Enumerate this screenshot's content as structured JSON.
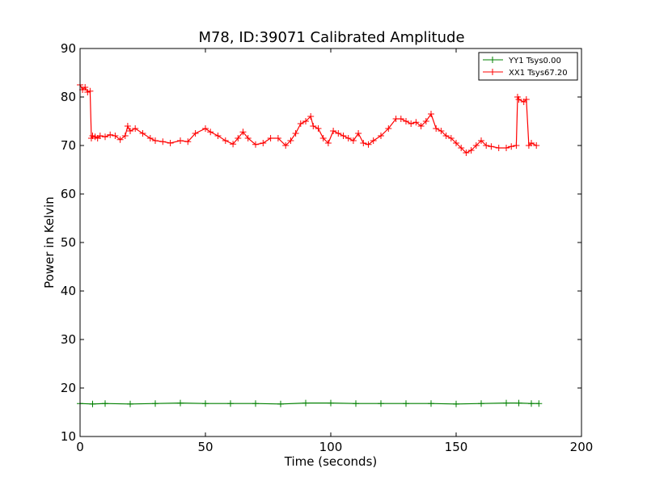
{
  "chart_data": {
    "type": "line",
    "title": "M78, ID:39071 Calibrated Amplitude",
    "xlabel": "Time (seconds)",
    "ylabel": "Power in Kelvin",
    "xlim": [
      0,
      200
    ],
    "ylim": [
      10,
      90
    ],
    "xticks": [
      "0",
      "50",
      "100",
      "150",
      "200"
    ],
    "yticks": [
      "10",
      "20",
      "30",
      "40",
      "50",
      "60",
      "70",
      "80",
      "90"
    ],
    "grid": false,
    "legend_position": "top-right",
    "marker": "plus",
    "series": [
      {
        "name": "YY1 Tsys0.00",
        "color": "#008000",
        "x": [
          0,
          5,
          10,
          20,
          30,
          40,
          50,
          60,
          70,
          80,
          90,
          100,
          110,
          120,
          130,
          140,
          150,
          160,
          170,
          175,
          180,
          183
        ],
        "y": [
          16.8,
          16.7,
          16.8,
          16.7,
          16.8,
          16.9,
          16.8,
          16.8,
          16.8,
          16.7,
          16.9,
          16.9,
          16.8,
          16.8,
          16.8,
          16.8,
          16.7,
          16.8,
          16.9,
          16.9,
          16.8,
          16.8
        ]
      },
      {
        "name": "XX1 Tsys67.20",
        "color": "#ff0000",
        "x": [
          0,
          1,
          2,
          3,
          4,
          4.5,
          5,
          6,
          7,
          8,
          10,
          12,
          14,
          16,
          18,
          19,
          20,
          22,
          25,
          28,
          30,
          33,
          36,
          40,
          43,
          46,
          50,
          52,
          55,
          58,
          61,
          63,
          65,
          67,
          70,
          73,
          76,
          79,
          82,
          84,
          86,
          88,
          90,
          92,
          93,
          95,
          97,
          99,
          101,
          103,
          105,
          107,
          109,
          111,
          113,
          115,
          117,
          120,
          123,
          126,
          128,
          130,
          132,
          134,
          136,
          138,
          140,
          142,
          144,
          146,
          148,
          150,
          152,
          154,
          156,
          158,
          160,
          162,
          164,
          167,
          170,
          172,
          174,
          174.5,
          175,
          177,
          178,
          179,
          180,
          182
        ],
        "y": [
          82.5,
          81.5,
          82,
          81,
          81.2,
          71.5,
          72,
          71.8,
          71.5,
          72,
          71.8,
          72.2,
          72,
          71.2,
          72,
          74,
          73,
          73.5,
          72.5,
          71.5,
          71,
          70.8,
          70.5,
          71,
          70.8,
          72.5,
          73.5,
          72.8,
          72,
          71,
          70.3,
          71.5,
          72.8,
          71.5,
          70.2,
          70.5,
          71.5,
          71.5,
          70,
          71,
          72.5,
          74.5,
          75,
          76,
          74,
          73.5,
          71.5,
          70.5,
          73,
          72.5,
          72,
          71.5,
          71,
          72.5,
          70.5,
          70.2,
          71,
          72,
          73.5,
          75.5,
          75.5,
          75,
          74.5,
          74.8,
          74,
          75,
          76.5,
          73.5,
          73,
          72,
          71.5,
          70.5,
          69.5,
          68.5,
          69,
          70,
          71,
          70,
          69.8,
          69.5,
          69.5,
          69.8,
          70,
          80,
          79.5,
          79,
          79.5,
          70,
          70.5,
          70
        ]
      }
    ]
  }
}
